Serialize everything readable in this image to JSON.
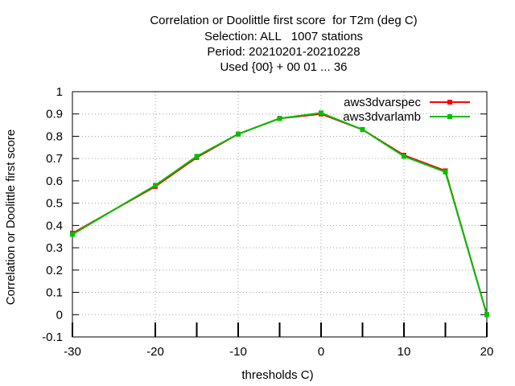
{
  "chart_data": {
    "type": "line",
    "title_lines": [
      "Correlation or Doolittle first score  for T2m (deg C)",
      "Selection: ALL   1007 stations",
      "Period: 20210201-20210228",
      "Used {00} + 00 01 ... 36"
    ],
    "xlabel": "thresholds C)",
    "ylabel": "Correlation or Doolittle first score",
    "xlim": [
      -30,
      20
    ],
    "ylim": [
      -0.1,
      1
    ],
    "xticks": [
      -30,
      -20,
      -10,
      0,
      10,
      20
    ],
    "xtick_labels": [
      "-30",
      "-20",
      "-10",
      "0",
      "10",
      "20"
    ],
    "yticks": [
      -0.1,
      0,
      0.1,
      0.2,
      0.3,
      0.4,
      0.5,
      0.6,
      0.7,
      0.8,
      0.9,
      1
    ],
    "ytick_labels": [
      "-0.1",
      "0",
      "0.1",
      "0.2",
      "0.3",
      "0.4",
      "0.5",
      "0.6",
      "0.7",
      "0.8",
      "0.9",
      "1"
    ],
    "grid": true,
    "legend_position": "top-right",
    "x": [
      -30,
      -20,
      -15,
      -10,
      -5,
      0,
      5,
      10,
      15,
      20
    ],
    "series": [
      {
        "name": "aws3dvarspec",
        "color": "#ff0000",
        "values": [
          0.365,
          0.575,
          0.705,
          0.81,
          0.88,
          0.9,
          0.83,
          0.715,
          0.645,
          0.0
        ]
      },
      {
        "name": "aws3dvarlamb",
        "color": "#00c000",
        "values": [
          0.36,
          0.58,
          0.71,
          0.81,
          0.88,
          0.905,
          0.83,
          0.71,
          0.64,
          0.0
        ]
      }
    ]
  }
}
